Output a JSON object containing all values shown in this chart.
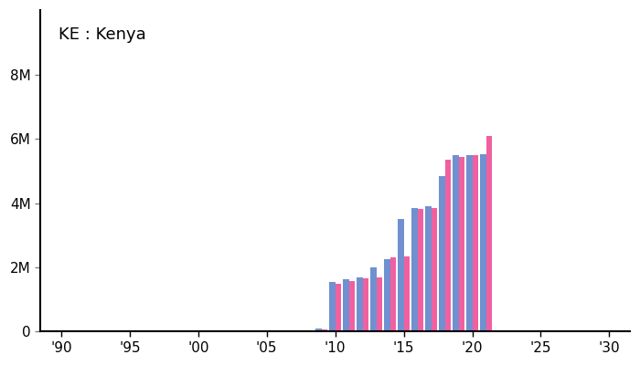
{
  "title": "KE : Kenya",
  "xlim": [
    1988.5,
    2031.5
  ],
  "ylim": [
    0,
    10000000
  ],
  "yticks": [
    0,
    2000000,
    4000000,
    6000000,
    8000000
  ],
  "ytick_labels": [
    "0",
    "2M",
    "4M",
    "6M",
    "8M"
  ],
  "xticks": [
    1990,
    1995,
    2000,
    2005,
    2010,
    2015,
    2020,
    2025,
    2030
  ],
  "xtick_labels": [
    "'90",
    "'95",
    "'00",
    "'05",
    "'10",
    "'15",
    "'20",
    "'25",
    "'30"
  ],
  "color_blue": "#7090d0",
  "color_pink": "#f060a0",
  "background_color": "#ffffff",
  "years": [
    1990,
    1991,
    1992,
    1993,
    1994,
    1995,
    1996,
    1997,
    1998,
    1999,
    2000,
    2001,
    2002,
    2003,
    2004,
    2005,
    2006,
    2007,
    2008,
    2009,
    2010,
    2011,
    2012,
    2013,
    2014,
    2015,
    2016,
    2017,
    2018,
    2019,
    2020,
    2021
  ],
  "blue_values": [
    0,
    0,
    0,
    0,
    0,
    0,
    0,
    0,
    0,
    0,
    0,
    0,
    0,
    0,
    3000,
    8000,
    12000,
    22000,
    45000,
    90000,
    1550000,
    1620000,
    1700000,
    2000000,
    2250000,
    3500000,
    3850000,
    3900000,
    4830000,
    5500000,
    5500000,
    5530000
  ],
  "pink_values": [
    0,
    0,
    0,
    0,
    0,
    0,
    0,
    0,
    0,
    0,
    0,
    0,
    0,
    0,
    2000,
    5000,
    9000,
    18000,
    38000,
    70000,
    1500000,
    1580000,
    1650000,
    1700000,
    2300000,
    2350000,
    3830000,
    3850000,
    5350000,
    5430000,
    5500000,
    6100000
  ],
  "bar_width": 0.42,
  "title_fontsize": 13,
  "tick_fontsize": 11
}
